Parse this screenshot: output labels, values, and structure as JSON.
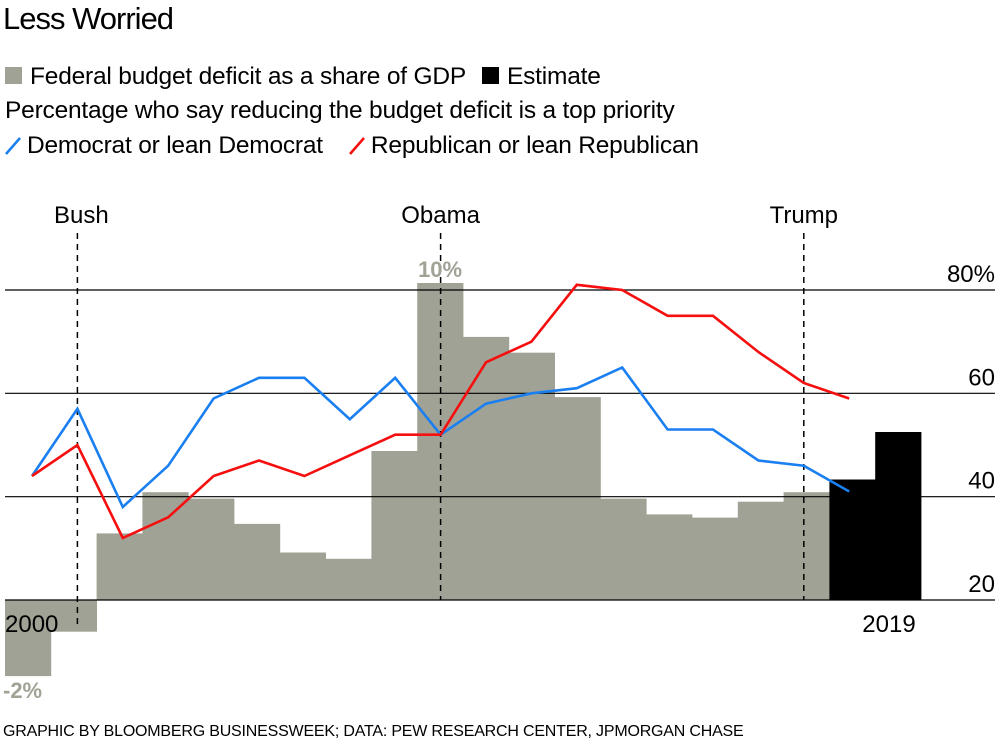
{
  "title": "Less Worried",
  "legend": {
    "deficit_label": "Federal budget deficit as a share of GDP",
    "estimate_label": "Estimate",
    "subtitle": "Percentage who say reducing the budget deficit is a top priority",
    "democrat_label": "Democrat or lean Democrat",
    "republican_label": "Republican or lean Republican"
  },
  "footer": "GRAPHIC BY BLOOMBERG BUSINESSWEEK; DATA: PEW RESEARCH CENTER, JPMORGAN CHASE",
  "colors": {
    "deficit_bar": "#a1a296",
    "estimate_bar": "#000000",
    "democrat": "#1a7ff0",
    "republican": "#f50f0f",
    "bar_label": "#a1a296",
    "grid": "#000000"
  },
  "chart_data": {
    "type": "bar+line",
    "title": "Less Worried",
    "years": [
      2000,
      2001,
      2002,
      2003,
      2004,
      2005,
      2006,
      2007,
      2008,
      2009,
      2010,
      2011,
      2012,
      2013,
      2014,
      2015,
      2016,
      2017,
      2018,
      2019
    ],
    "x_tick_labels": {
      "start": "2000",
      "end": "2019"
    },
    "bars": {
      "name": "Federal budget deficit as a share of GDP",
      "unit": "% of GDP",
      "values": [
        -2.4,
        -1.0,
        2.1,
        3.4,
        3.2,
        2.4,
        1.5,
        1.3,
        4.7,
        10.0,
        8.3,
        7.8,
        6.4,
        3.2,
        2.7,
        2.6,
        3.1,
        3.4,
        3.8,
        5.3
      ],
      "estimate_years": [
        2018,
        2019
      ],
      "annotations": [
        {
          "year": 2000,
          "label": "-2%"
        },
        {
          "year": 2009,
          "label": "10%"
        }
      ]
    },
    "series": [
      {
        "name": "Democrat or lean Democrat",
        "years": [
          2000,
          2001,
          2002,
          2003,
          2004,
          2005,
          2006,
          2007,
          2008,
          2009,
          2010,
          2011,
          2012,
          2013,
          2014,
          2015,
          2016,
          2017,
          2018
        ],
        "values": [
          44,
          57,
          38,
          46,
          59,
          63,
          63,
          55,
          63,
          52,
          58,
          60,
          61,
          65,
          53,
          53,
          47,
          46,
          41
        ]
      },
      {
        "name": "Republican or lean Republican",
        "years": [
          2000,
          2001,
          2002,
          2003,
          2004,
          2005,
          2006,
          2007,
          2008,
          2009,
          2010,
          2011,
          2012,
          2013,
          2014,
          2015,
          2016,
          2017,
          2018
        ],
        "values": [
          44,
          50,
          32,
          36,
          44,
          47,
          44,
          48,
          52,
          52,
          66,
          70,
          81,
          80,
          75,
          75,
          68,
          62,
          59
        ]
      }
    ],
    "y_axis": {
      "unit": "%",
      "ticks": [
        20,
        40,
        60,
        80
      ],
      "tick_labels": [
        "20",
        "40",
        "60",
        "80%"
      ],
      "range": [
        20,
        80
      ],
      "position": "right"
    },
    "presidents": [
      {
        "name": "Bush",
        "year": 2001
      },
      {
        "name": "Obama",
        "year": 2009
      },
      {
        "name": "Trump",
        "year": 2017
      }
    ],
    "grid": true,
    "legend_position": "top-left"
  }
}
